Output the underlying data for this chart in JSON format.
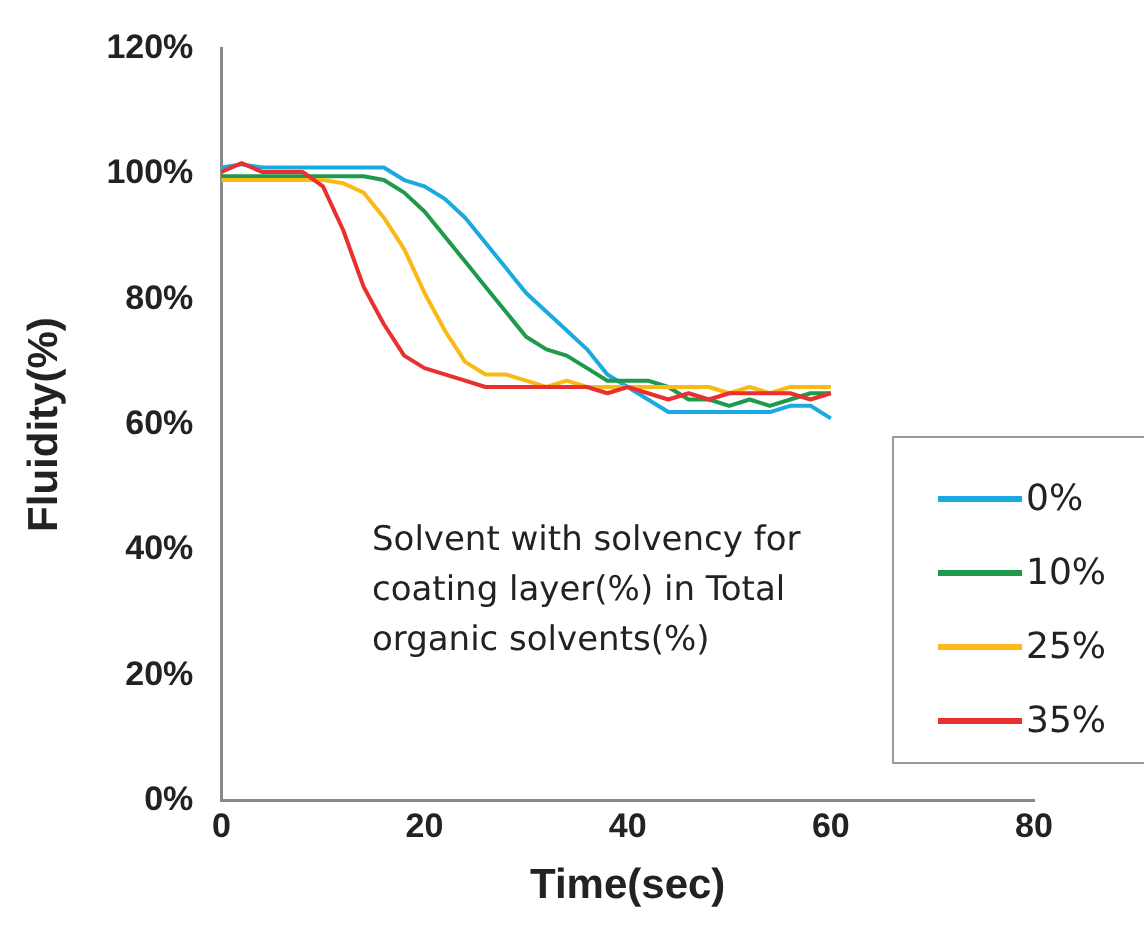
{
  "chart_data": {
    "type": "line",
    "xlabel": "Time(sec)",
    "ylabel": "Fluidity(%)",
    "x": [
      0,
      2,
      4,
      6,
      8,
      10,
      12,
      14,
      16,
      18,
      20,
      22,
      24,
      26,
      28,
      30,
      32,
      34,
      36,
      38,
      40,
      42,
      44,
      46,
      48,
      50,
      52,
      54,
      56,
      58,
      60
    ],
    "series": [
      {
        "name": "0%",
        "color": "#1ba9e1",
        "values": [
          101,
          101.5,
          101,
          101,
          101,
          101,
          101,
          101,
          101,
          99,
          98,
          96,
          93,
          89,
          85,
          81,
          78,
          75,
          72,
          68,
          66,
          64,
          62,
          62,
          62,
          62,
          62,
          62,
          63,
          63,
          61
        ]
      },
      {
        "name": "10%",
        "color": "#1e9a4a",
        "values": [
          99.6,
          99.6,
          99.6,
          99.6,
          99.6,
          99.6,
          99.6,
          99.6,
          99,
          97,
          94,
          90,
          86,
          82,
          78,
          74,
          72,
          71,
          69,
          67,
          67,
          67,
          66,
          64,
          64,
          63,
          64,
          63,
          64,
          65,
          65
        ]
      },
      {
        "name": "25%",
        "color": "#fbb917",
        "values": [
          99,
          99,
          99,
          99,
          99,
          99,
          98.5,
          97,
          93,
          88,
          81,
          75,
          70,
          68,
          68,
          67,
          66,
          67,
          66,
          66,
          66,
          66,
          66,
          66,
          66,
          65,
          66,
          65,
          66,
          66,
          66
        ]
      },
      {
        "name": "35%",
        "color": "#e8302e",
        "values": [
          100.3,
          101.7,
          100.3,
          100.3,
          100.3,
          98,
          91,
          82,
          76,
          71,
          69,
          68,
          67,
          66,
          66,
          66,
          66,
          66,
          66,
          65,
          66,
          65,
          64,
          65,
          64,
          65,
          65,
          65,
          65,
          64,
          65
        ]
      }
    ],
    "xlim": [
      0,
      80
    ],
    "xticks": [
      0,
      20,
      40,
      60,
      80
    ],
    "ylim": [
      0,
      120
    ],
    "yticks": [
      {
        "value": 0,
        "label": "0%"
      },
      {
        "value": 20,
        "label": "20%"
      },
      {
        "value": 40,
        "label": "40%"
      },
      {
        "value": 60,
        "label": "60%"
      },
      {
        "value": 80,
        "label": "80%"
      },
      {
        "value": 100,
        "label": "100%"
      },
      {
        "value": 120,
        "label": "120%"
      }
    ],
    "annotations": [
      "Solvent with solvency for coating layer(%) in Total organic solvents(%)"
    ],
    "grid": false,
    "legend": "bottom right",
    "marker": "none",
    "line_style": "solid"
  }
}
